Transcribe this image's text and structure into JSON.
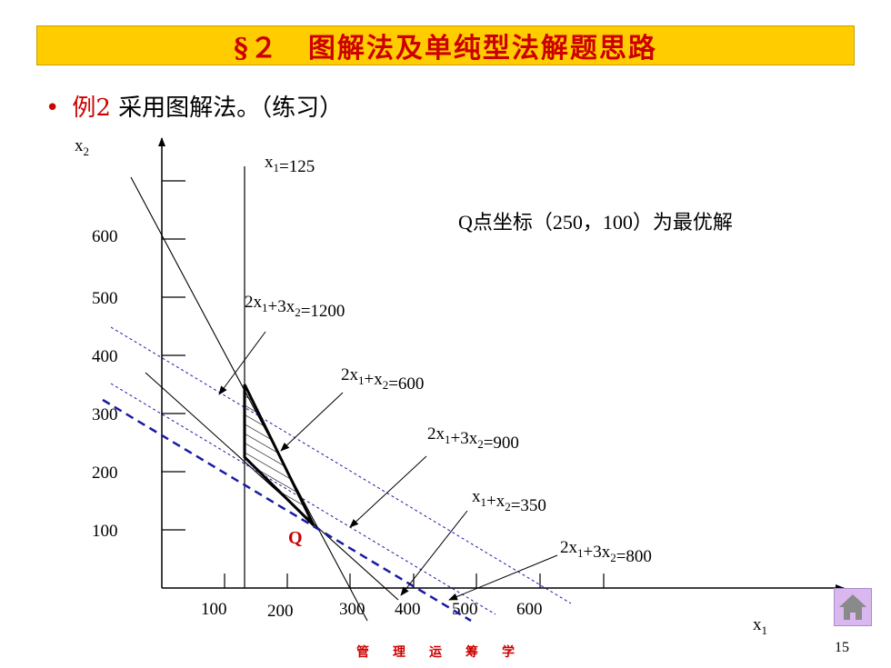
{
  "slide": {
    "title": "§２　图解法及单纯型法解题思路",
    "bullet_red": "例2",
    "bullet_text": " 采用图解法。（练习）",
    "note": "Q点坐标（250，100）为最优解",
    "footer": "管理运筹学",
    "page_number": "15",
    "home_icon": "home-icon"
  },
  "axes": {
    "x_label": "x",
    "x_label_sub": "1",
    "y_label": "x",
    "y_label_sub": "2",
    "x_ticks": [
      "100",
      "200",
      "300",
      "400",
      "500",
      "600"
    ],
    "y_ticks": [
      "100",
      "200",
      "300",
      "400",
      "500",
      "600"
    ]
  },
  "point": {
    "label": "Q",
    "x": 250,
    "y": 100,
    "color": "#cc0000"
  },
  "constraints": [
    {
      "id": "c1",
      "parts": [
        [
          "x",
          "1"
        ],
        [
          "=125",
          ""
        ]
      ]
    },
    {
      "id": "c2",
      "parts": [
        [
          "2x",
          "1"
        ],
        [
          "+3x",
          "2"
        ],
        [
          "=1200",
          ""
        ]
      ]
    },
    {
      "id": "c3",
      "parts": [
        [
          "2x",
          "1"
        ],
        [
          "+x",
          "2"
        ],
        [
          "=600",
          ""
        ]
      ]
    },
    {
      "id": "c4",
      "parts": [
        [
          "2x",
          "1"
        ],
        [
          "+3x",
          "2"
        ],
        [
          "=900",
          ""
        ]
      ]
    },
    {
      "id": "c5",
      "parts": [
        [
          "x",
          "1"
        ],
        [
          "+x",
          "2"
        ],
        [
          "=350",
          ""
        ]
      ]
    },
    {
      "id": "c6",
      "parts": [
        [
          "2x",
          "1"
        ],
        [
          "+3x",
          "2"
        ],
        [
          "=800",
          ""
        ]
      ]
    }
  ],
  "colors": {
    "dashed_line": "#1a1aa6",
    "title_bg": "#ffcc00",
    "title_text": "#cc0000",
    "accent_red": "#cc0000"
  }
}
